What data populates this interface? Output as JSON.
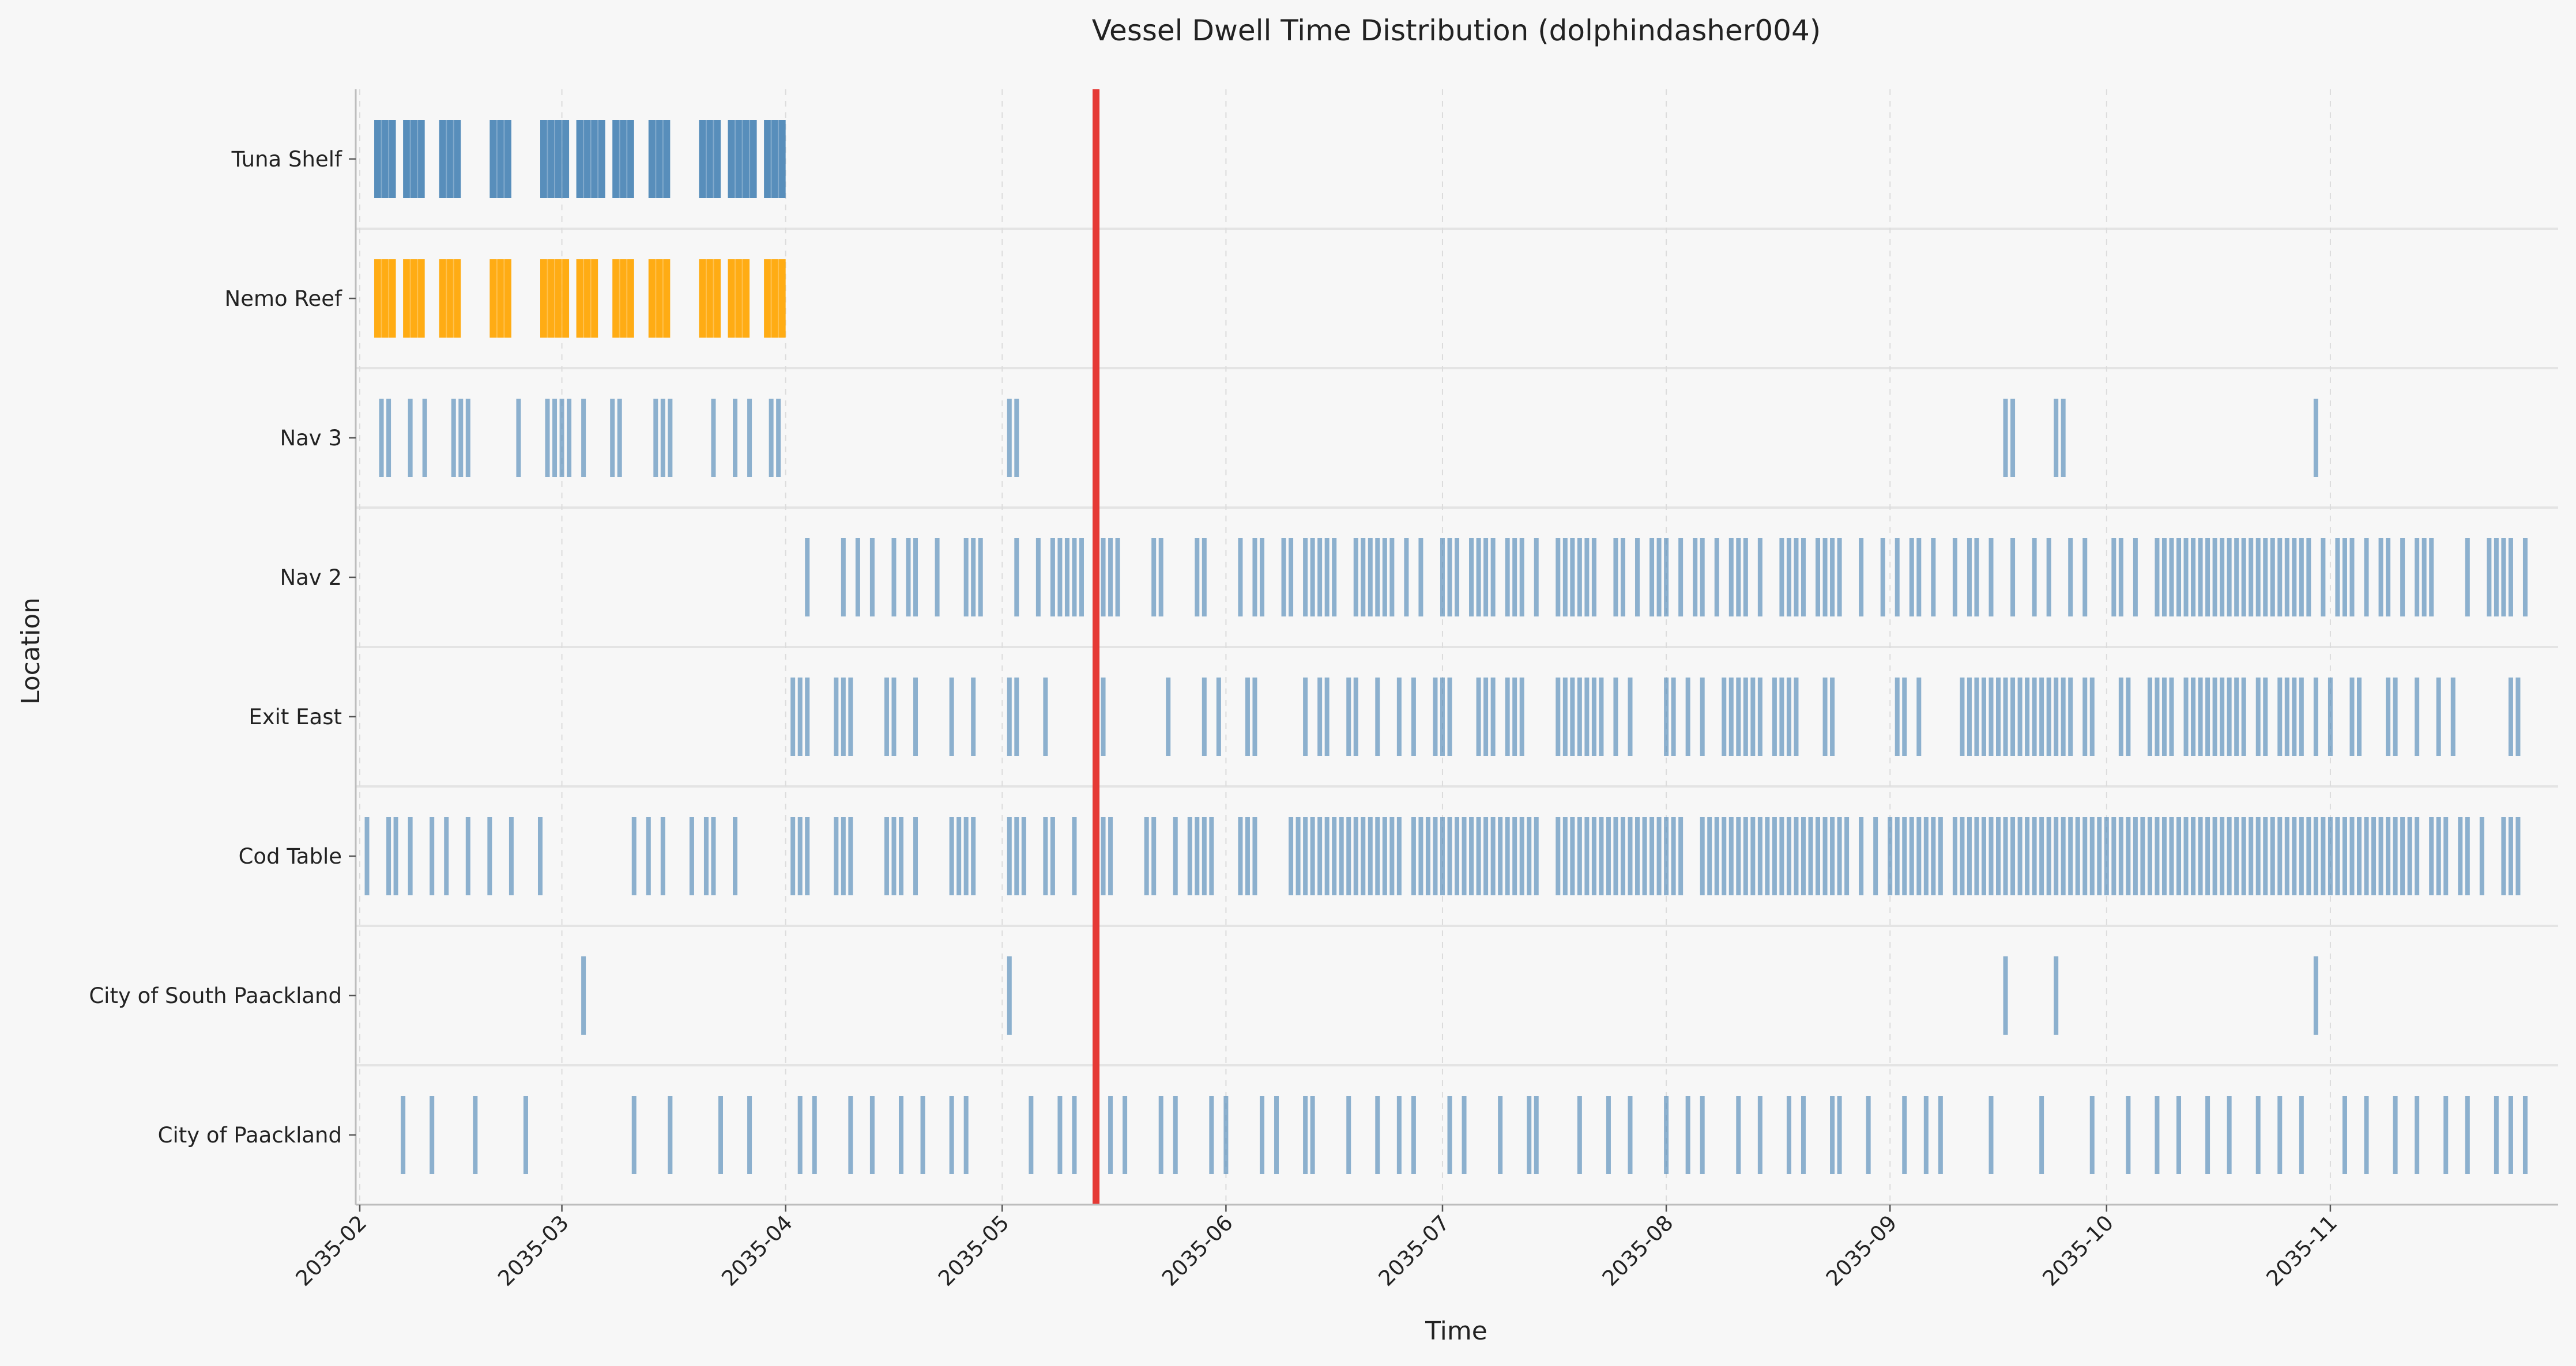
{
  "chart_data": {
    "type": "event-timeline",
    "title": "Vessel Dwell Time Distribution (dolphindasher004)",
    "xlabel": "Time",
    "ylabel": "Location",
    "x_range": [
      "2035-02-01",
      "2035-11-30"
    ],
    "x_ticks": [
      "2035-02",
      "2035-03",
      "2035-04",
      "2035-05",
      "2035-06",
      "2035-07",
      "2035-08",
      "2035-09",
      "2035-10",
      "2035-11"
    ],
    "categories": [
      "Tuna Shelf",
      "Nemo Reef",
      "Nav 3",
      "Nav 2",
      "Exit East",
      "Cod Table",
      "City of South Paackland",
      "City of Paackland"
    ],
    "reference_line": {
      "date": "2035-05-14",
      "color": "#e53935"
    },
    "grid": {
      "vertical": "dashed",
      "row_separators": true
    },
    "colors": {
      "default": "#4a84b5",
      "highlight": "#ffa500",
      "background": "#f7f7f7"
    },
    "series": [
      {
        "location": "Tuna Shelf",
        "color": "#4a84b5",
        "blocks": [
          [
            "2035-02-03",
            "2035-02-06"
          ],
          [
            "2035-02-07",
            "2035-02-10"
          ],
          [
            "2035-02-12",
            "2035-02-15"
          ],
          [
            "2035-02-19",
            "2035-02-22"
          ],
          [
            "2035-02-26",
            "2035-03-02"
          ],
          [
            "2035-03-03",
            "2035-03-07"
          ],
          [
            "2035-03-08",
            "2035-03-11"
          ],
          [
            "2035-03-13",
            "2035-03-16"
          ],
          [
            "2035-03-20",
            "2035-03-23"
          ],
          [
            "2035-03-24",
            "2035-03-28"
          ],
          [
            "2035-03-29",
            "2035-04-01"
          ]
        ]
      },
      {
        "location": "Nemo Reef",
        "color": "#ffa500",
        "blocks": [
          [
            "2035-02-03",
            "2035-02-06"
          ],
          [
            "2035-02-07",
            "2035-02-10"
          ],
          [
            "2035-02-12",
            "2035-02-15"
          ],
          [
            "2035-02-19",
            "2035-02-22"
          ],
          [
            "2035-02-26",
            "2035-03-02"
          ],
          [
            "2035-03-03",
            "2035-03-06"
          ],
          [
            "2035-03-08",
            "2035-03-11"
          ],
          [
            "2035-03-13",
            "2035-03-16"
          ],
          [
            "2035-03-20",
            "2035-03-23"
          ],
          [
            "2035-03-24",
            "2035-03-27"
          ],
          [
            "2035-03-29",
            "2035-04-01"
          ]
        ]
      },
      {
        "location": "Nav 3",
        "color": "#4a84b5",
        "events": [
          "2035-02-04",
          "2035-02-05",
          "2035-02-08",
          "2035-02-10",
          "2035-02-14",
          "2035-02-15",
          "2035-02-16",
          "2035-02-23",
          "2035-02-27",
          "2035-02-28",
          "2035-03-01",
          "2035-03-02",
          "2035-03-04",
          "2035-03-08",
          "2035-03-09",
          "2035-03-14",
          "2035-03-15",
          "2035-03-16",
          "2035-03-22",
          "2035-03-25",
          "2035-03-27",
          "2035-03-30",
          "2035-03-31",
          "2035-05-02",
          "2035-05-03",
          "2035-09-17",
          "2035-09-18",
          "2035-09-24",
          "2035-09-25",
          "2035-10-30"
        ]
      },
      {
        "location": "Nav 2",
        "color": "#4a84b5",
        "events": [
          "2035-04-04",
          "2035-04-09",
          "2035-04-11",
          "2035-04-13",
          "2035-04-16",
          "2035-04-18",
          "2035-04-19",
          "2035-04-22",
          "2035-04-26",
          "2035-04-27",
          "2035-04-28",
          "2035-05-03",
          "2035-05-06",
          "2035-05-08",
          "2035-05-09",
          "2035-05-10",
          "2035-05-11",
          "2035-05-12",
          "2035-05-15",
          "2035-05-16",
          "2035-05-17",
          "2035-05-22",
          "2035-05-23",
          "2035-05-28",
          "2035-05-29",
          "2035-06-03",
          "2035-06-05",
          "2035-06-06",
          "2035-06-09",
          "2035-06-10",
          "2035-06-12",
          "2035-06-13",
          "2035-06-14",
          "2035-06-15",
          "2035-06-16",
          "2035-06-19",
          "2035-06-20",
          "2035-06-21",
          "2035-06-22",
          "2035-06-23",
          "2035-06-24",
          "2035-06-26",
          "2035-06-28",
          "2035-07-01",
          "2035-07-02",
          "2035-07-03",
          "2035-07-05",
          "2035-07-06",
          "2035-07-07",
          "2035-07-08",
          "2035-07-10",
          "2035-07-11",
          "2035-07-12",
          "2035-07-14",
          "2035-07-17",
          "2035-07-18",
          "2035-07-19",
          "2035-07-20",
          "2035-07-21",
          "2035-07-22",
          "2035-07-25",
          "2035-07-26",
          "2035-07-28",
          "2035-07-30",
          "2035-07-31",
          "2035-08-01",
          "2035-08-03",
          "2035-08-05",
          "2035-08-06",
          "2035-08-08",
          "2035-08-10",
          "2035-08-11",
          "2035-08-12",
          "2035-08-14",
          "2035-08-17",
          "2035-08-18",
          "2035-08-19",
          "2035-08-20",
          "2035-08-22",
          "2035-08-23",
          "2035-08-24",
          "2035-08-25",
          "2035-08-28",
          "2035-08-31",
          "2035-09-02",
          "2035-09-04",
          "2035-09-05",
          "2035-09-07",
          "2035-09-10",
          "2035-09-12",
          "2035-09-13",
          "2035-09-15",
          "2035-09-18",
          "2035-09-21",
          "2035-09-23",
          "2035-09-26",
          "2035-09-28",
          "2035-10-02",
          "2035-10-03",
          "2035-10-05",
          "2035-10-08",
          "2035-10-09",
          "2035-10-10",
          "2035-10-11",
          "2035-10-12",
          "2035-10-13",
          "2035-10-14",
          "2035-10-15",
          "2035-10-16",
          "2035-10-17",
          "2035-10-18",
          "2035-10-19",
          "2035-10-20",
          "2035-10-21",
          "2035-10-22",
          "2035-10-23",
          "2035-10-24",
          "2035-10-25",
          "2035-10-26",
          "2035-10-27",
          "2035-10-28",
          "2035-10-29",
          "2035-10-31",
          "2035-11-02",
          "2035-11-03",
          "2035-11-04",
          "2035-11-06",
          "2035-11-08",
          "2035-11-09",
          "2035-11-11",
          "2035-11-13",
          "2035-11-14",
          "2035-11-15",
          "2035-11-20",
          "2035-11-23",
          "2035-11-24",
          "2035-11-25",
          "2035-11-26",
          "2035-11-28"
        ]
      },
      {
        "location": "Exit East",
        "color": "#4a84b5",
        "events": [
          "2035-04-02",
          "2035-04-03",
          "2035-04-04",
          "2035-04-08",
          "2035-04-09",
          "2035-04-10",
          "2035-04-15",
          "2035-04-16",
          "2035-04-19",
          "2035-04-24",
          "2035-04-27",
          "2035-05-02",
          "2035-05-03",
          "2035-05-07",
          "2035-05-15",
          "2035-05-24",
          "2035-05-29",
          "2035-05-31",
          "2035-06-04",
          "2035-06-05",
          "2035-06-12",
          "2035-06-14",
          "2035-06-15",
          "2035-06-18",
          "2035-06-19",
          "2035-06-22",
          "2035-06-25",
          "2035-06-27",
          "2035-06-30",
          "2035-07-01",
          "2035-07-02",
          "2035-07-06",
          "2035-07-07",
          "2035-07-08",
          "2035-07-10",
          "2035-07-11",
          "2035-07-12",
          "2035-07-17",
          "2035-07-18",
          "2035-07-19",
          "2035-07-20",
          "2035-07-21",
          "2035-07-22",
          "2035-07-23",
          "2035-07-25",
          "2035-07-27",
          "2035-08-01",
          "2035-08-02",
          "2035-08-04",
          "2035-08-06",
          "2035-08-09",
          "2035-08-10",
          "2035-08-11",
          "2035-08-12",
          "2035-08-13",
          "2035-08-14",
          "2035-08-16",
          "2035-08-17",
          "2035-08-18",
          "2035-08-19",
          "2035-08-23",
          "2035-08-24",
          "2035-09-02",
          "2035-09-03",
          "2035-09-05",
          "2035-09-11",
          "2035-09-12",
          "2035-09-13",
          "2035-09-14",
          "2035-09-15",
          "2035-09-16",
          "2035-09-17",
          "2035-09-18",
          "2035-09-19",
          "2035-09-20",
          "2035-09-21",
          "2035-09-22",
          "2035-09-23",
          "2035-09-24",
          "2035-09-25",
          "2035-09-26",
          "2035-09-28",
          "2035-09-29",
          "2035-10-03",
          "2035-10-04",
          "2035-10-07",
          "2035-10-08",
          "2035-10-09",
          "2035-10-10",
          "2035-10-12",
          "2035-10-13",
          "2035-10-14",
          "2035-10-15",
          "2035-10-16",
          "2035-10-17",
          "2035-10-18",
          "2035-10-19",
          "2035-10-20",
          "2035-10-22",
          "2035-10-23",
          "2035-10-25",
          "2035-10-26",
          "2035-10-27",
          "2035-10-28",
          "2035-10-30",
          "2035-11-01",
          "2035-11-04",
          "2035-11-05",
          "2035-11-09",
          "2035-11-10",
          "2035-11-13",
          "2035-11-16",
          "2035-11-18",
          "2035-11-26",
          "2035-11-27"
        ]
      },
      {
        "location": "Cod Table",
        "color": "#4a84b5",
        "events": [
          "2035-02-02",
          "2035-02-05",
          "2035-02-06",
          "2035-02-08",
          "2035-02-11",
          "2035-02-13",
          "2035-02-16",
          "2035-02-19",
          "2035-02-22",
          "2035-02-26",
          "2035-03-11",
          "2035-03-13",
          "2035-03-15",
          "2035-03-19",
          "2035-03-21",
          "2035-03-22",
          "2035-03-25",
          "2035-04-02",
          "2035-04-03",
          "2035-04-04",
          "2035-04-08",
          "2035-04-09",
          "2035-04-10",
          "2035-04-15",
          "2035-04-16",
          "2035-04-17",
          "2035-04-19",
          "2035-04-24",
          "2035-04-25",
          "2035-04-26",
          "2035-04-27",
          "2035-05-02",
          "2035-05-03",
          "2035-05-04",
          "2035-05-07",
          "2035-05-08",
          "2035-05-11",
          "2035-05-14",
          "2035-05-15",
          "2035-05-16",
          "2035-05-21",
          "2035-05-22",
          "2035-05-25",
          "2035-05-27",
          "2035-05-28",
          "2035-05-29",
          "2035-05-30",
          "2035-06-03",
          "2035-06-04",
          "2035-06-05",
          "2035-06-10",
          "2035-06-11",
          "2035-06-12",
          "2035-06-13",
          "2035-06-14",
          "2035-06-15",
          "2035-06-16",
          "2035-06-17",
          "2035-06-18",
          "2035-06-19",
          "2035-06-20",
          "2035-06-21",
          "2035-06-22",
          "2035-06-23",
          "2035-06-24",
          "2035-06-25",
          "2035-06-27",
          "2035-06-28",
          "2035-06-29",
          "2035-06-30",
          "2035-07-01",
          "2035-07-02",
          "2035-07-03",
          "2035-07-04",
          "2035-07-05",
          "2035-07-06",
          "2035-07-07",
          "2035-07-08",
          "2035-07-09",
          "2035-07-10",
          "2035-07-11",
          "2035-07-12",
          "2035-07-13",
          "2035-07-14",
          "2035-07-17",
          "2035-07-18",
          "2035-07-19",
          "2035-07-20",
          "2035-07-21",
          "2035-07-22",
          "2035-07-23",
          "2035-07-24",
          "2035-07-25",
          "2035-07-26",
          "2035-07-27",
          "2035-07-28",
          "2035-07-29",
          "2035-07-30",
          "2035-07-31",
          "2035-08-01",
          "2035-08-02",
          "2035-08-03",
          "2035-08-06",
          "2035-08-07",
          "2035-08-08",
          "2035-08-09",
          "2035-08-10",
          "2035-08-11",
          "2035-08-12",
          "2035-08-13",
          "2035-08-14",
          "2035-08-15",
          "2035-08-16",
          "2035-08-17",
          "2035-08-18",
          "2035-08-19",
          "2035-08-20",
          "2035-08-21",
          "2035-08-22",
          "2035-08-23",
          "2035-08-24",
          "2035-08-25",
          "2035-08-26",
          "2035-08-28",
          "2035-08-30",
          "2035-09-01",
          "2035-09-02",
          "2035-09-03",
          "2035-09-04",
          "2035-09-05",
          "2035-09-06",
          "2035-09-07",
          "2035-09-08",
          "2035-09-10",
          "2035-09-11",
          "2035-09-12",
          "2035-09-13",
          "2035-09-14",
          "2035-09-15",
          "2035-09-16",
          "2035-09-17",
          "2035-09-18",
          "2035-09-19",
          "2035-09-20",
          "2035-09-21",
          "2035-09-22",
          "2035-09-23",
          "2035-09-24",
          "2035-09-25",
          "2035-09-26",
          "2035-09-27",
          "2035-09-28",
          "2035-09-29",
          "2035-09-30",
          "2035-10-01",
          "2035-10-02",
          "2035-10-03",
          "2035-10-04",
          "2035-10-05",
          "2035-10-06",
          "2035-10-07",
          "2035-10-08",
          "2035-10-09",
          "2035-10-10",
          "2035-10-11",
          "2035-10-12",
          "2035-10-13",
          "2035-10-14",
          "2035-10-15",
          "2035-10-16",
          "2035-10-17",
          "2035-10-18",
          "2035-10-19",
          "2035-10-20",
          "2035-10-21",
          "2035-10-22",
          "2035-10-23",
          "2035-10-24",
          "2035-10-25",
          "2035-10-26",
          "2035-10-27",
          "2035-10-28",
          "2035-10-29",
          "2035-10-30",
          "2035-10-31",
          "2035-11-01",
          "2035-11-02",
          "2035-11-03",
          "2035-11-04",
          "2035-11-05",
          "2035-11-06",
          "2035-11-07",
          "2035-11-08",
          "2035-11-09",
          "2035-11-10",
          "2035-11-11",
          "2035-11-12",
          "2035-11-13",
          "2035-11-15",
          "2035-11-16",
          "2035-11-17",
          "2035-11-19",
          "2035-11-20",
          "2035-11-22",
          "2035-11-25",
          "2035-11-26",
          "2035-11-27"
        ]
      },
      {
        "location": "City of South Paackland",
        "color": "#4a84b5",
        "events": [
          "2035-03-04",
          "2035-05-02",
          "2035-09-17",
          "2035-09-24",
          "2035-10-30"
        ]
      },
      {
        "location": "City of Paackland",
        "color": "#4a84b5",
        "events": [
          "2035-02-07",
          "2035-02-11",
          "2035-02-17",
          "2035-02-24",
          "2035-03-11",
          "2035-03-16",
          "2035-03-23",
          "2035-03-27",
          "2035-04-03",
          "2035-04-05",
          "2035-04-10",
          "2035-04-13",
          "2035-04-17",
          "2035-04-20",
          "2035-04-24",
          "2035-04-26",
          "2035-05-05",
          "2035-05-09",
          "2035-05-11",
          "2035-05-16",
          "2035-05-18",
          "2035-05-23",
          "2035-05-25",
          "2035-05-30",
          "2035-06-01",
          "2035-06-06",
          "2035-06-08",
          "2035-06-12",
          "2035-06-13",
          "2035-06-18",
          "2035-06-22",
          "2035-06-25",
          "2035-06-27",
          "2035-07-02",
          "2035-07-04",
          "2035-07-09",
          "2035-07-13",
          "2035-07-14",
          "2035-07-20",
          "2035-07-24",
          "2035-07-27",
          "2035-08-01",
          "2035-08-04",
          "2035-08-06",
          "2035-08-11",
          "2035-08-14",
          "2035-08-18",
          "2035-08-20",
          "2035-08-24",
          "2035-08-25",
          "2035-08-29",
          "2035-09-03",
          "2035-09-06",
          "2035-09-08",
          "2035-09-15",
          "2035-09-22",
          "2035-09-29",
          "2035-10-04",
          "2035-10-08",
          "2035-10-11",
          "2035-10-15",
          "2035-10-18",
          "2035-10-22",
          "2035-10-25",
          "2035-10-28",
          "2035-11-03",
          "2035-11-06",
          "2035-11-10",
          "2035-11-13",
          "2035-11-17",
          "2035-11-20",
          "2035-11-24",
          "2035-11-26",
          "2035-11-28"
        ]
      }
    ]
  }
}
